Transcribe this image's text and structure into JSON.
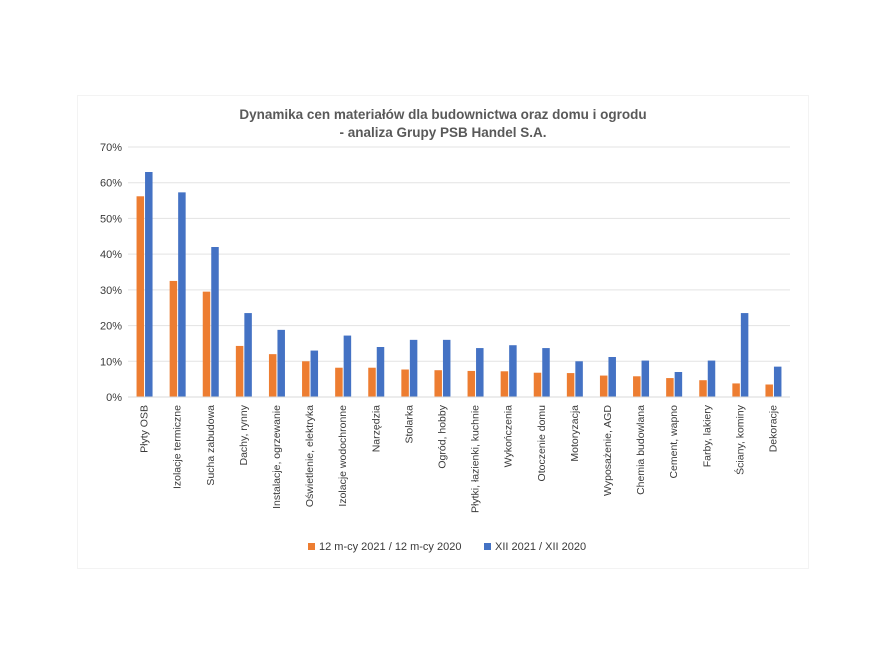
{
  "chart_data": {
    "type": "bar",
    "title": [
      "Dynamika cen materiałów dla budownictwa oraz domu i ogrodu",
      "- analiza Grupy PSB Handel S.A."
    ],
    "ylim": [
      0,
      70
    ],
    "yticks": [
      0,
      10,
      20,
      30,
      40,
      50,
      60,
      70
    ],
    "ytick_labels": [
      "0%",
      "10%",
      "20%",
      "30%",
      "40%",
      "50%",
      "60%",
      "70%"
    ],
    "grid": true,
    "legend_position": "bottom",
    "categories": [
      "Płyty OSB",
      "Izolacje termiczne",
      "Sucha zabudowa",
      "Dachy, rynny",
      "Instalacje, ogrzewanie",
      "Oświetlenie, elektryka",
      "Izolacje wodochronne",
      "Narzędzia",
      "Stolarka",
      "Ogród, hobby",
      "Płytki, łazienki, kuchnie",
      "Wykończenia",
      "Otoczenie domu",
      "Motoryzacja",
      "Wyposażenie, AGD",
      "Chemia budowlana",
      "Cement, wapno",
      "Farby, lakiery",
      "Ściany, kominy",
      "Dekoracje"
    ],
    "series": [
      {
        "name": "12 m-cy 2021 / 12 m-cy 2020",
        "color": "#ED7D31",
        "values": [
          56.2,
          32.5,
          29.5,
          14.3,
          12.0,
          10.0,
          8.2,
          8.2,
          7.7,
          7.5,
          7.3,
          7.2,
          6.8,
          6.7,
          6.0,
          5.8,
          5.3,
          4.7,
          3.8,
          3.5
        ]
      },
      {
        "name": "XII 2021 / XII 2020",
        "color": "#4472C4",
        "values": [
          63.0,
          57.3,
          42.0,
          23.5,
          18.8,
          13.0,
          17.2,
          14.0,
          16.0,
          16.0,
          13.7,
          14.5,
          13.7,
          10.0,
          11.2,
          10.2,
          7.0,
          10.2,
          23.5,
          8.5
        ]
      }
    ]
  }
}
